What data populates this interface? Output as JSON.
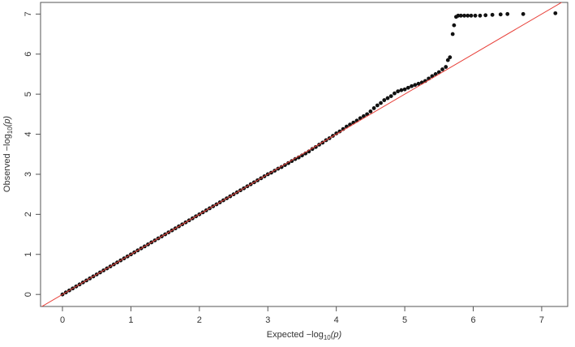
{
  "chart_data": {
    "type": "scatter",
    "x_label": [
      "Expected  −log",
      "10",
      "(p)"
    ],
    "y_label": [
      "Observed  −log",
      "10",
      "(p)"
    ],
    "xlim": [
      -0.32,
      7.38
    ],
    "ylim": [
      -0.3,
      7.29
    ],
    "xticks": [
      0,
      1,
      2,
      3,
      4,
      5,
      6,
      7
    ],
    "yticks": [
      0,
      1,
      2,
      3,
      4,
      5,
      6,
      7
    ],
    "color": "#111111",
    "reference_line": {
      "slope": 1,
      "intercept": 0,
      "color": "#e8413a"
    },
    "x": [
      0,
      0.05,
      0.1,
      0.15,
      0.2,
      0.25,
      0.3,
      0.35,
      0.4,
      0.45,
      0.5,
      0.55,
      0.6,
      0.65,
      0.7,
      0.75,
      0.8,
      0.85,
      0.9,
      0.95,
      1,
      1.05,
      1.1,
      1.15,
      1.2,
      1.25,
      1.3,
      1.35,
      1.4,
      1.45,
      1.5,
      1.55,
      1.6,
      1.65,
      1.7,
      1.75,
      1.8,
      1.85,
      1.9,
      1.95,
      2,
      2.05,
      2.1,
      2.15,
      2.2,
      2.25,
      2.3,
      2.35,
      2.4,
      2.45,
      2.5,
      2.55,
      2.6,
      2.65,
      2.7,
      2.75,
      2.8,
      2.85,
      2.9,
      2.95,
      3,
      3.05,
      3.1,
      3.15,
      3.2,
      3.25,
      3.3,
      3.35,
      3.4,
      3.45,
      3.5,
      3.55,
      3.6,
      3.65,
      3.7,
      3.75,
      3.8,
      3.85,
      3.9,
      3.95,
      4,
      4.05,
      4.1,
      4.15,
      4.2,
      4.25,
      4.3,
      4.35,
      4.4,
      4.45,
      4.5,
      4.55,
      4.6,
      4.65,
      4.7,
      4.75,
      4.8,
      4.85,
      4.9,
      4.95,
      5,
      5.05,
      5.1,
      5.15,
      5.2,
      5.25,
      5.3,
      5.35,
      5.4,
      5.45,
      5.5,
      5.55,
      5.6,
      5.63,
      5.66,
      5.7,
      5.72,
      5.75,
      5.78,
      5.82,
      5.87,
      5.92,
      5.97,
      6.03,
      6.1,
      6.18,
      6.28,
      6.4,
      6.5,
      6.73,
      7.2
    ],
    "y": [
      0,
      0.05,
      0.1,
      0.15,
      0.2,
      0.25,
      0.3,
      0.35,
      0.4,
      0.45,
      0.5,
      0.55,
      0.6,
      0.65,
      0.7,
      0.75,
      0.8,
      0.85,
      0.9,
      0.95,
      1,
      1.05,
      1.1,
      1.15,
      1.2,
      1.25,
      1.3,
      1.35,
      1.4,
      1.45,
      1.5,
      1.55,
      1.6,
      1.65,
      1.7,
      1.75,
      1.8,
      1.85,
      1.9,
      1.95,
      2,
      2.05,
      2.1,
      2.15,
      2.2,
      2.25,
      2.3,
      2.35,
      2.4,
      2.45,
      2.5,
      2.55,
      2.6,
      2.65,
      2.7,
      2.75,
      2.8,
      2.85,
      2.9,
      2.95,
      3,
      3.04,
      3.09,
      3.14,
      3.18,
      3.23,
      3.28,
      3.33,
      3.38,
      3.42,
      3.47,
      3.52,
      3.57,
      3.63,
      3.68,
      3.74,
      3.79,
      3.85,
      3.9,
      3.96,
      4.02,
      4.07,
      4.13,
      4.19,
      4.24,
      4.29,
      4.34,
      4.4,
      4.45,
      4.5,
      4.57,
      4.65,
      4.72,
      4.78,
      4.85,
      4.9,
      4.95,
      5.02,
      5.07,
      5.1,
      5.12,
      5.16,
      5.2,
      5.23,
      5.26,
      5.29,
      5.33,
      5.39,
      5.45,
      5.5,
      5.55,
      5.62,
      5.68,
      5.85,
      5.92,
      6.5,
      6.72,
      6.93,
      6.96,
      6.96,
      6.96,
      6.96,
      6.96,
      6.96,
      6.96,
      6.97,
      6.98,
      6.99,
      7,
      7,
      7.02
    ]
  }
}
